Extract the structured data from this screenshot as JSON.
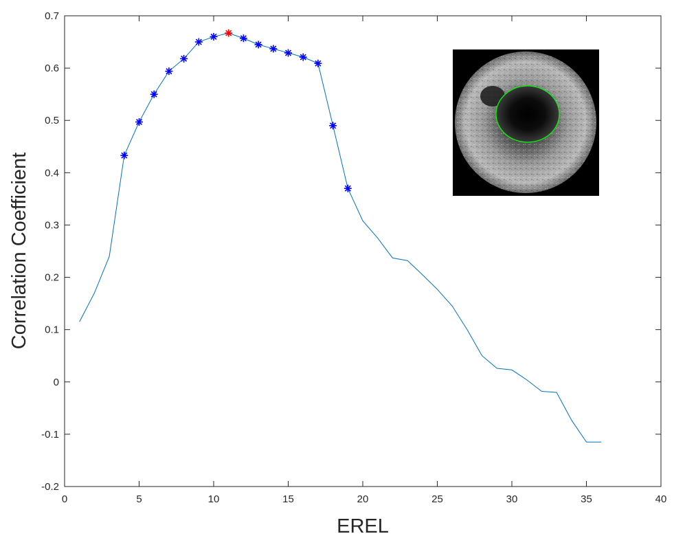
{
  "chart_data": {
    "type": "line",
    "title": "",
    "xlabel": "EREL",
    "ylabel": "Correlation Coefficient",
    "xlim": [
      0,
      40
    ],
    "ylim": [
      -0.2,
      0.7
    ],
    "xticks": [
      0,
      5,
      10,
      15,
      20,
      25,
      30,
      35,
      40
    ],
    "xtick_labels": [
      "0",
      "5",
      "10",
      "15",
      "20",
      "25",
      "30",
      "35",
      "40"
    ],
    "yticks": [
      -0.2,
      -0.1,
      0,
      0.1,
      0.2,
      0.3,
      0.4,
      0.5,
      0.6,
      0.7
    ],
    "ytick_labels": [
      "-0.2",
      "-0.1",
      "0",
      "0.1",
      "0.2",
      "0.3",
      "0.4",
      "0.5",
      "0.6",
      "0.7"
    ],
    "grid": false,
    "series": [
      {
        "line_color": "#0072bd",
        "x": [
          1,
          2,
          3,
          4,
          5,
          6,
          7,
          8,
          9,
          10,
          11,
          12,
          13,
          14,
          15,
          16,
          17,
          18,
          19,
          20,
          21,
          22,
          23,
          24,
          25,
          26,
          27,
          28,
          29,
          30,
          31,
          32,
          33,
          34,
          35,
          36
        ],
        "y": [
          0.115,
          0.17,
          0.24,
          0.433,
          0.497,
          0.55,
          0.594,
          0.618,
          0.65,
          0.66,
          0.667,
          0.657,
          0.645,
          0.637,
          0.629,
          0.621,
          0.609,
          0.49,
          0.37,
          0.308,
          0.275,
          0.237,
          0.232,
          0.205,
          0.177,
          0.145,
          0.1,
          0.05,
          0.026,
          0.023,
          0.004,
          -0.018,
          -0.02,
          -0.073,
          -0.115,
          -0.115
        ]
      }
    ],
    "markers": {
      "blue": {
        "color": "#0000ff",
        "x": [
          4,
          5,
          6,
          7,
          8,
          9,
          10,
          12,
          13,
          14,
          15,
          16,
          17,
          18,
          19
        ]
      },
      "red": {
        "color": "#ff0000",
        "x": [
          11
        ]
      }
    },
    "inset_image": {
      "description": "ultrasound",
      "contour_color": "#00ff00"
    }
  }
}
